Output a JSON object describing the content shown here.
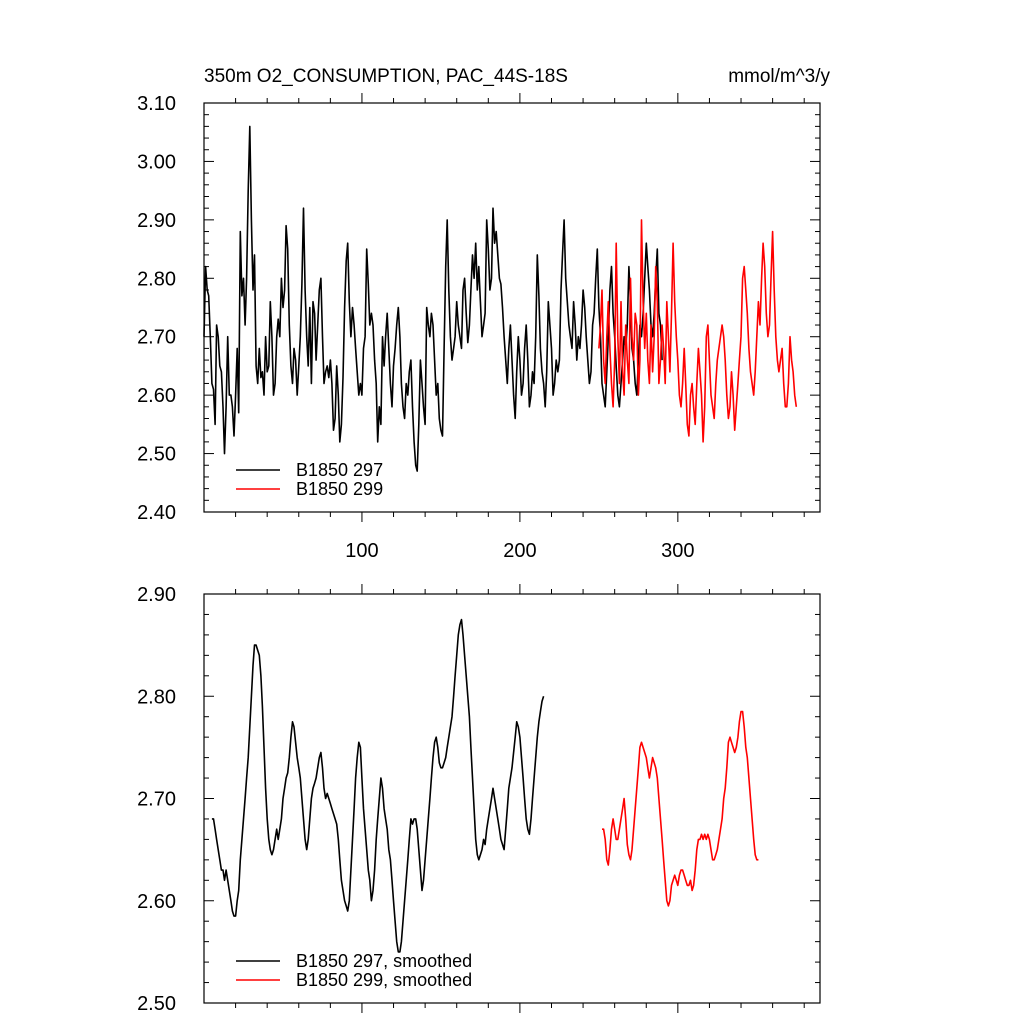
{
  "chart_data": [
    {
      "type": "line",
      "title": "350m O2_CONSUMPTION, PAC_44S-18S",
      "units": "mmol/m^3/y",
      "xlim": [
        0,
        390
      ],
      "ylim": [
        2.4,
        3.1
      ],
      "xticks": [
        100,
        200,
        300
      ],
      "xtick_labels": [
        "100",
        "200",
        "300"
      ],
      "yticks": [
        2.4,
        2.5,
        2.6,
        2.7,
        2.8,
        2.9,
        3.0,
        3.1
      ],
      "ytick_labels": [
        "2.40",
        "2.50",
        "2.60",
        "2.70",
        "2.80",
        "2.90",
        "3.00",
        "3.10"
      ],
      "legend_position": "bottom-left",
      "series": [
        {
          "name": "B1850 297",
          "color": "#000000",
          "x0": 0,
          "dx": 1,
          "values": [
            2.7,
            2.82,
            2.78,
            2.77,
            2.7,
            2.62,
            2.61,
            2.55,
            2.72,
            2.7,
            2.65,
            2.64,
            2.58,
            2.5,
            2.58,
            2.7,
            2.6,
            2.6,
            2.58,
            2.53,
            2.6,
            2.68,
            2.57,
            2.88,
            2.77,
            2.8,
            2.72,
            2.8,
            2.95,
            3.06,
            2.9,
            2.78,
            2.84,
            2.65,
            2.62,
            2.68,
            2.63,
            2.64,
            2.6,
            2.7,
            2.64,
            2.65,
            2.76,
            2.7,
            2.6,
            2.62,
            2.7,
            2.73,
            2.7,
            2.8,
            2.75,
            2.78,
            2.89,
            2.85,
            2.72,
            2.65,
            2.62,
            2.68,
            2.66,
            2.6,
            2.65,
            2.7,
            2.79,
            2.92,
            2.78,
            2.7,
            2.65,
            2.75,
            2.62,
            2.76,
            2.74,
            2.66,
            2.72,
            2.78,
            2.8,
            2.7,
            2.62,
            2.64,
            2.65,
            2.63,
            2.66,
            2.62,
            2.54,
            2.56,
            2.65,
            2.6,
            2.52,
            2.55,
            2.63,
            2.75,
            2.83,
            2.86,
            2.76,
            2.7,
            2.75,
            2.72,
            2.68,
            2.64,
            2.6,
            2.62,
            2.6,
            2.68,
            2.7,
            2.85,
            2.79,
            2.72,
            2.74,
            2.72,
            2.66,
            2.62,
            2.52,
            2.58,
            2.55,
            2.7,
            2.65,
            2.7,
            2.74,
            2.68,
            2.62,
            2.58,
            2.65,
            2.68,
            2.72,
            2.75,
            2.7,
            2.62,
            2.58,
            2.56,
            2.62,
            2.6,
            2.64,
            2.66,
            2.58,
            2.52,
            2.48,
            2.47,
            2.55,
            2.66,
            2.62,
            2.58,
            2.55,
            2.75,
            2.72,
            2.7,
            2.74,
            2.72,
            2.66,
            2.6,
            2.62,
            2.56,
            2.54,
            2.53,
            2.68,
            2.82,
            2.9,
            2.78,
            2.7,
            2.66,
            2.68,
            2.7,
            2.76,
            2.72,
            2.7,
            2.68,
            2.78,
            2.8,
            2.74,
            2.69,
            2.72,
            2.78,
            2.84,
            2.8,
            2.86,
            2.78,
            2.82,
            2.76,
            2.7,
            2.72,
            2.74,
            2.9,
            2.85,
            2.78,
            2.8,
            2.92,
            2.86,
            2.88,
            2.84,
            2.8,
            2.79,
            2.75,
            2.7,
            2.66,
            2.62,
            2.68,
            2.72,
            2.66,
            2.6,
            2.56,
            2.64,
            2.7,
            2.66,
            2.6,
            2.62,
            2.68,
            2.72,
            2.66,
            2.58,
            2.6,
            2.64,
            2.62,
            2.7,
            2.84,
            2.77,
            2.68,
            2.64,
            2.62,
            2.58,
            2.64,
            2.76,
            2.72,
            2.68,
            2.6,
            2.62,
            2.66,
            2.64,
            2.66,
            2.78,
            2.84,
            2.9,
            2.8,
            2.76,
            2.72,
            2.7,
            2.68,
            2.76,
            2.72,
            2.66,
            2.7,
            2.68,
            2.72,
            2.78,
            2.75,
            2.7,
            2.66,
            2.62,
            2.64,
            2.72,
            2.74,
            2.8,
            2.85,
            2.75,
            2.7,
            2.62,
            2.6,
            2.58,
            2.64,
            2.7,
            2.78,
            2.82,
            2.74,
            2.7,
            2.65,
            2.6,
            2.58,
            2.62,
            2.66,
            2.7,
            2.68,
            2.72,
            2.82,
            2.76,
            2.68,
            2.66,
            2.62,
            2.6,
            2.66,
            2.72,
            2.7,
            2.74,
            2.8,
            2.86,
            2.82,
            2.78,
            2.72,
            2.7,
            2.74,
            2.8,
            2.85,
            2.74,
            2.72,
            2.66
          ]
        },
        {
          "name": "B1850 299",
          "color": "#ff0000",
          "x0": 250,
          "dx": 1,
          "values": [
            2.68,
            2.72,
            2.78,
            2.66,
            2.62,
            2.7,
            2.76,
            2.68,
            2.62,
            2.58,
            2.66,
            2.86,
            2.7,
            2.62,
            2.76,
            2.64,
            2.6,
            2.72,
            2.66,
            2.62,
            2.8,
            2.7,
            2.66,
            2.74,
            2.72,
            2.6,
            2.66,
            2.9,
            2.76,
            2.68,
            2.74,
            2.66,
            2.62,
            2.72,
            2.64,
            2.7,
            2.82,
            2.76,
            2.62,
            2.66,
            2.72,
            2.68,
            2.62,
            2.76,
            2.7,
            2.64,
            2.74,
            2.86,
            2.76,
            2.7,
            2.66,
            2.6,
            2.58,
            2.62,
            2.68,
            2.62,
            2.55,
            2.53,
            2.6,
            2.62,
            2.58,
            2.55,
            2.62,
            2.68,
            2.64,
            2.6,
            2.52,
            2.58,
            2.7,
            2.72,
            2.66,
            2.6,
            2.58,
            2.56,
            2.62,
            2.66,
            2.68,
            2.7,
            2.72,
            2.7,
            2.66,
            2.6,
            2.56,
            2.58,
            2.64,
            2.6,
            2.54,
            2.58,
            2.62,
            2.66,
            2.7,
            2.8,
            2.82,
            2.78,
            2.74,
            2.68,
            2.64,
            2.62,
            2.6,
            2.64,
            2.7,
            2.76,
            2.72,
            2.8,
            2.86,
            2.82,
            2.74,
            2.7,
            2.72,
            2.8,
            2.88,
            2.78,
            2.7,
            2.66,
            2.64,
            2.66,
            2.68,
            2.62,
            2.58,
            2.58,
            2.62,
            2.7,
            2.66,
            2.64,
            2.6,
            2.58
          ]
        }
      ]
    },
    {
      "type": "line",
      "xlim": [
        0,
        390
      ],
      "ylim": [
        2.5,
        2.9
      ],
      "xticks": [
        100,
        200,
        300
      ],
      "yticks": [
        2.5,
        2.6,
        2.7,
        2.8,
        2.9
      ],
      "ytick_labels": [
        "2.50",
        "2.60",
        "2.70",
        "2.80",
        "2.90"
      ],
      "legend_position": "bottom-left",
      "series": [
        {
          "name": "B1850 297, smoothed",
          "color": "#000000",
          "x0": 5,
          "dx": 1,
          "values": [
            2.68,
            2.68,
            2.67,
            2.66,
            2.65,
            2.64,
            2.63,
            2.63,
            2.62,
            2.63,
            2.62,
            2.61,
            2.6,
            2.59,
            2.585,
            2.585,
            2.6,
            2.61,
            2.64,
            2.66,
            2.68,
            2.7,
            2.72,
            2.74,
            2.77,
            2.8,
            2.83,
            2.85,
            2.85,
            2.845,
            2.84,
            2.82,
            2.79,
            2.75,
            2.71,
            2.68,
            2.66,
            2.65,
            2.645,
            2.65,
            2.66,
            2.67,
            2.66,
            2.67,
            2.68,
            2.7,
            2.71,
            2.72,
            2.725,
            2.74,
            2.76,
            2.775,
            2.77,
            2.755,
            2.74,
            2.73,
            2.72,
            2.7,
            2.68,
            2.66,
            2.65,
            2.66,
            2.68,
            2.7,
            2.71,
            2.715,
            2.72,
            2.73,
            2.74,
            2.745,
            2.73,
            2.71,
            2.7,
            2.705,
            2.7,
            2.695,
            2.69,
            2.685,
            2.68,
            2.675,
            2.66,
            2.64,
            2.62,
            2.61,
            2.6,
            2.595,
            2.59,
            2.6,
            2.63,
            2.66,
            2.69,
            2.72,
            2.74,
            2.755,
            2.75,
            2.72,
            2.69,
            2.67,
            2.65,
            2.63,
            2.62,
            2.6,
            2.61,
            2.63,
            2.66,
            2.68,
            2.7,
            2.72,
            2.71,
            2.69,
            2.68,
            2.67,
            2.65,
            2.64,
            2.62,
            2.6,
            2.58,
            2.56,
            2.55,
            2.55,
            2.56,
            2.58,
            2.6,
            2.62,
            2.64,
            2.66,
            2.68,
            2.675,
            2.68,
            2.68,
            2.67,
            2.65,
            2.63,
            2.61,
            2.62,
            2.64,
            2.66,
            2.68,
            2.7,
            2.72,
            2.74,
            2.755,
            2.76,
            2.75,
            2.735,
            2.73,
            2.73,
            2.735,
            2.74,
            2.75,
            2.76,
            2.77,
            2.78,
            2.8,
            2.82,
            2.84,
            2.86,
            2.87,
            2.875,
            2.86,
            2.84,
            2.82,
            2.8,
            2.78,
            2.75,
            2.72,
            2.69,
            2.66,
            2.645,
            2.64,
            2.645,
            2.65,
            2.66,
            2.655,
            2.67,
            2.68,
            2.69,
            2.7,
            2.71,
            2.7,
            2.69,
            2.68,
            2.67,
            2.66,
            2.655,
            2.65,
            2.67,
            2.69,
            2.71,
            2.72,
            2.73,
            2.745,
            2.76,
            2.775,
            2.77,
            2.76,
            2.74,
            2.72,
            2.7,
            2.68,
            2.67,
            2.665,
            2.68,
            2.7,
            2.72,
            2.74,
            2.76,
            2.775,
            2.785,
            2.795,
            2.8
          ]
        },
        {
          "name": "B1850 299, smoothed",
          "color": "#ff0000",
          "x0": 252,
          "dx": 1,
          "values": [
            2.67,
            2.67,
            2.66,
            2.64,
            2.635,
            2.65,
            2.67,
            2.68,
            2.67,
            2.66,
            2.66,
            2.67,
            2.68,
            2.69,
            2.7,
            2.68,
            2.655,
            2.645,
            2.64,
            2.65,
            2.67,
            2.69,
            2.71,
            2.73,
            2.75,
            2.755,
            2.75,
            2.745,
            2.74,
            2.73,
            2.72,
            2.73,
            2.74,
            2.735,
            2.73,
            2.72,
            2.7,
            2.68,
            2.66,
            2.64,
            2.62,
            2.6,
            2.595,
            2.6,
            2.615,
            2.62,
            2.625,
            2.62,
            2.615,
            2.625,
            2.63,
            2.63,
            2.625,
            2.62,
            2.615,
            2.615,
            2.62,
            2.61,
            2.615,
            2.63,
            2.65,
            2.66,
            2.66,
            2.665,
            2.66,
            2.665,
            2.66,
            2.665,
            2.66,
            2.65,
            2.64,
            2.64,
            2.645,
            2.65,
            2.66,
            2.67,
            2.68,
            2.7,
            2.71,
            2.73,
            2.755,
            2.76,
            2.755,
            2.75,
            2.745,
            2.75,
            2.76,
            2.775,
            2.785,
            2.785,
            2.77,
            2.75,
            2.74,
            2.72,
            2.7,
            2.68,
            2.66,
            2.645,
            2.64,
            2.64
          ]
        }
      ]
    }
  ]
}
